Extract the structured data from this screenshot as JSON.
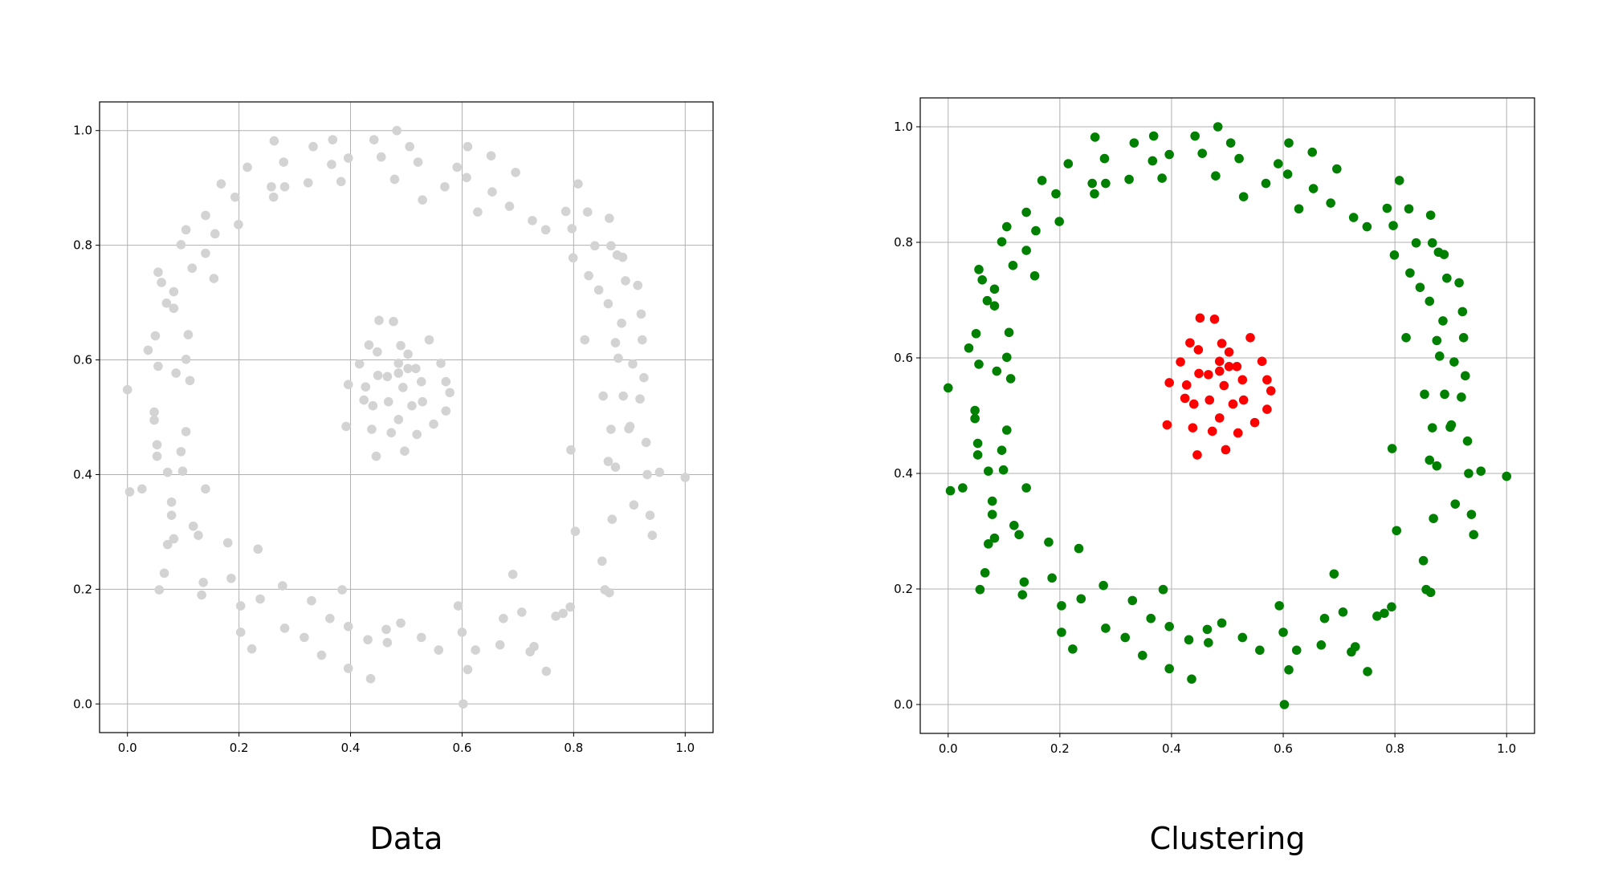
{
  "chart_data": [
    {
      "type": "scatter",
      "title": "Data",
      "xlim": [
        -0.05,
        1.05
      ],
      "ylim": [
        -0.05,
        1.05
      ],
      "xticks": [
        {
          "value": 0,
          "label": "0.0"
        },
        0.2,
        0.4,
        0.6,
        0.8,
        {
          "value": 1,
          "label": "1.0"
        }
      ],
      "yticks": [
        {
          "value": 0,
          "label": "0.0"
        },
        0.2,
        0.4,
        0.6,
        0.8,
        {
          "value": 1,
          "label": "1.0"
        }
      ],
      "grid": true,
      "series": [
        {
          "color": "#d3d3d3",
          "x": [
            0,
            0.004,
            0.026,
            0.037,
            0.048,
            0.048,
            0.053,
            0.053,
            0.05,
            0.057,
            0.055,
            0.055,
            0.061,
            0.066,
            0.072,
            0.07,
            0.072,
            0.079,
            0.079,
            0.083,
            0.083,
            0.083,
            0.087,
            0.096,
            0.099,
            0.096,
            0.105,
            0.105,
            0.105,
            0.109,
            0.112,
            0.116,
            0.118,
            0.127,
            0.133,
            0.136,
            0.14,
            0.14,
            0.14,
            0.155,
            0.157,
            0.168,
            0.18,
            0.186,
            0.193,
            0.199,
            0.203,
            0.203,
            0.215,
            0.223,
            0.234,
            0.238,
            0.258,
            0.262,
            0.263,
            0.28,
            0.278,
            0.282,
            0.282,
            0.317,
            0.324,
            0.33,
            0.333,
            0.348,
            0.363,
            0.366,
            0.368,
            0.383,
            0.385,
            0.396,
            0.396,
            0.396,
            0.431,
            0.436,
            0.442,
            0.455,
            0.464,
            0.466,
            0.479,
            0.483,
            0.49,
            0.506,
            0.521,
            0.527,
            0.529,
            0.558,
            0.569,
            0.591,
            0.593,
            0.6,
            0.602,
            0.608,
            0.61,
            0.61,
            0.624,
            0.628,
            0.652,
            0.654,
            0.668,
            0.674,
            0.685,
            0.691,
            0.696,
            0.707,
            0.722,
            0.726,
            0.729,
            0.75,
            0.751,
            0.768,
            0.781,
            0.786,
            0.794,
            0.795,
            0.797,
            0.799,
            0.803,
            0.808,
            0.82,
            0.825,
            0.827,
            0.838,
            0.845,
            0.851,
            0.853,
            0.856,
            0.862,
            0.862,
            0.864,
            0.864,
            0.867,
            0.867,
            0.869,
            0.875,
            0.875,
            0.878,
            0.88,
            0.886,
            0.888,
            0.889,
            0.893,
            0.899,
            0.901,
            0.906,
            0.908,
            0.915,
            0.919,
            0.921,
            0.923,
            0.926,
            0.93,
            0.932,
            0.937,
            0.941,
            0.954,
            1.0
          ],
          "y": [
            0.548,
            0.37,
            0.375,
            0.617,
            0.495,
            0.509,
            0.432,
            0.452,
            0.642,
            0.199,
            0.589,
            0.753,
            0.735,
            0.228,
            0.278,
            0.699,
            0.404,
            0.352,
            0.329,
            0.288,
            0.719,
            0.69,
            0.577,
            0.44,
            0.406,
            0.801,
            0.827,
            0.601,
            0.475,
            0.644,
            0.564,
            0.76,
            0.31,
            0.294,
            0.19,
            0.212,
            0.375,
            0.786,
            0.852,
            0.742,
            0.82,
            0.907,
            0.281,
            0.219,
            0.884,
            0.836,
            0.171,
            0.125,
            0.936,
            0.096,
            0.27,
            0.183,
            0.902,
            0.884,
            0.982,
            0.945,
            0.206,
            0.902,
            0.132,
            0.116,
            0.909,
            0.18,
            0.972,
            0.085,
            0.149,
            0.941,
            0.984,
            0.911,
            0.199,
            0.952,
            0.135,
            0.062,
            0.112,
            0.044,
            0.984,
            0.954,
            0.13,
            0.107,
            0.915,
            1.0,
            0.141,
            0.972,
            0.945,
            0.116,
            0.879,
            0.094,
            0.902,
            0.936,
            0.171,
            0.125,
            0,
            0.918,
            0.06,
            0.972,
            0.094,
            0.858,
            0.956,
            0.893,
            0.103,
            0.149,
            0.868,
            0.226,
            0.927,
            0.16,
            0.091,
            0.843,
            0.1,
            0.827,
            0.057,
            0.153,
            0.158,
            0.859,
            0.169,
            0.443,
            0.829,
            0.778,
            0.301,
            0.907,
            0.635,
            0.858,
            0.747,
            0.799,
            0.722,
            0.249,
            0.537,
            0.199,
            0.698,
            0.423,
            0.847,
            0.194,
            0.799,
            0.479,
            0.322,
            0.63,
            0.413,
            0.783,
            0.603,
            0.664,
            0.779,
            0.537,
            0.738,
            0.48,
            0.484,
            0.593,
            0.347,
            0.73,
            0.532,
            0.68,
            0.635,
            0.569,
            0.456,
            0.4,
            0.329,
            0.294,
            0.404,
            0.395
          ]
        },
        {
          "color": "#d3d3d3",
          "x": [
            0.451,
            0.477,
            0.433,
            0.49,
            0.541,
            0.448,
            0.503,
            0.416,
            0.486,
            0.562,
            0.466,
            0.503,
            0.517,
            0.486,
            0.396,
            0.427,
            0.449,
            0.527,
            0.571,
            0.494,
            0.578,
            0.424,
            0.468,
            0.44,
            0.529,
            0.51,
            0.571,
            0.486,
            0.549,
            0.392,
            0.438,
            0.473,
            0.519,
            0.497,
            0.446
          ],
          "y": [
            0.669,
            0.667,
            0.626,
            0.625,
            0.635,
            0.614,
            0.61,
            0.593,
            0.594,
            0.594,
            0.571,
            0.585,
            0.585,
            0.577,
            0.557,
            0.553,
            0.573,
            0.562,
            0.562,
            0.552,
            0.543,
            0.53,
            0.527,
            0.52,
            0.527,
            0.52,
            0.511,
            0.496,
            0.488,
            0.484,
            0.479,
            0.473,
            0.47,
            0.441,
            0.432
          ]
        }
      ]
    },
    {
      "type": "scatter",
      "title": "Clustering",
      "xlim": [
        -0.05,
        1.05
      ],
      "ylim": [
        -0.05,
        1.05
      ],
      "xticks": [
        {
          "value": 0,
          "label": "0.0"
        },
        0.2,
        0.4,
        0.6,
        0.8,
        {
          "value": 1,
          "label": "1.0"
        }
      ],
      "yticks": [
        {
          "value": 0,
          "label": "0.0"
        },
        0.2,
        0.4,
        0.6,
        0.8,
        {
          "value": 1,
          "label": "1.0"
        }
      ],
      "grid": true,
      "series": [
        {
          "color": "#008000",
          "x": [
            0,
            0.004,
            0.026,
            0.037,
            0.048,
            0.048,
            0.053,
            0.053,
            0.05,
            0.057,
            0.055,
            0.055,
            0.061,
            0.066,
            0.072,
            0.07,
            0.072,
            0.079,
            0.079,
            0.083,
            0.083,
            0.083,
            0.087,
            0.096,
            0.099,
            0.096,
            0.105,
            0.105,
            0.105,
            0.109,
            0.112,
            0.116,
            0.118,
            0.127,
            0.133,
            0.136,
            0.14,
            0.14,
            0.14,
            0.155,
            0.157,
            0.168,
            0.18,
            0.186,
            0.193,
            0.199,
            0.203,
            0.203,
            0.215,
            0.223,
            0.234,
            0.238,
            0.258,
            0.262,
            0.263,
            0.28,
            0.278,
            0.282,
            0.282,
            0.317,
            0.324,
            0.33,
            0.333,
            0.348,
            0.363,
            0.366,
            0.368,
            0.383,
            0.385,
            0.396,
            0.396,
            0.396,
            0.431,
            0.436,
            0.442,
            0.455,
            0.464,
            0.466,
            0.479,
            0.483,
            0.49,
            0.506,
            0.521,
            0.527,
            0.529,
            0.558,
            0.569,
            0.591,
            0.593,
            0.6,
            0.602,
            0.608,
            0.61,
            0.61,
            0.624,
            0.628,
            0.652,
            0.654,
            0.668,
            0.674,
            0.685,
            0.691,
            0.696,
            0.707,
            0.722,
            0.726,
            0.729,
            0.75,
            0.751,
            0.768,
            0.781,
            0.786,
            0.794,
            0.795,
            0.797,
            0.799,
            0.803,
            0.808,
            0.82,
            0.825,
            0.827,
            0.838,
            0.845,
            0.851,
            0.853,
            0.856,
            0.862,
            0.862,
            0.864,
            0.864,
            0.867,
            0.867,
            0.869,
            0.875,
            0.875,
            0.878,
            0.88,
            0.886,
            0.888,
            0.889,
            0.893,
            0.899,
            0.901,
            0.906,
            0.908,
            0.915,
            0.919,
            0.921,
            0.923,
            0.926,
            0.93,
            0.932,
            0.937,
            0.941,
            0.954,
            1.0
          ],
          "y": [
            0.548,
            0.37,
            0.375,
            0.617,
            0.495,
            0.509,
            0.432,
            0.452,
            0.642,
            0.199,
            0.589,
            0.753,
            0.735,
            0.228,
            0.278,
            0.699,
            0.404,
            0.352,
            0.329,
            0.288,
            0.719,
            0.69,
            0.577,
            0.44,
            0.406,
            0.801,
            0.827,
            0.601,
            0.475,
            0.644,
            0.564,
            0.76,
            0.31,
            0.294,
            0.19,
            0.212,
            0.375,
            0.786,
            0.852,
            0.742,
            0.82,
            0.907,
            0.281,
            0.219,
            0.884,
            0.836,
            0.171,
            0.125,
            0.936,
            0.096,
            0.27,
            0.183,
            0.902,
            0.884,
            0.982,
            0.945,
            0.206,
            0.902,
            0.132,
            0.116,
            0.909,
            0.18,
            0.972,
            0.085,
            0.149,
            0.941,
            0.984,
            0.911,
            0.199,
            0.952,
            0.135,
            0.062,
            0.112,
            0.044,
            0.984,
            0.954,
            0.13,
            0.107,
            0.915,
            1.0,
            0.141,
            0.972,
            0.945,
            0.116,
            0.879,
            0.094,
            0.902,
            0.936,
            0.171,
            0.125,
            0,
            0.918,
            0.06,
            0.972,
            0.094,
            0.858,
            0.956,
            0.893,
            0.103,
            0.149,
            0.868,
            0.226,
            0.927,
            0.16,
            0.091,
            0.843,
            0.1,
            0.827,
            0.057,
            0.153,
            0.158,
            0.859,
            0.169,
            0.443,
            0.829,
            0.778,
            0.301,
            0.907,
            0.635,
            0.858,
            0.747,
            0.799,
            0.722,
            0.249,
            0.537,
            0.199,
            0.698,
            0.423,
            0.847,
            0.194,
            0.799,
            0.479,
            0.322,
            0.63,
            0.413,
            0.783,
            0.603,
            0.664,
            0.779,
            0.537,
            0.738,
            0.48,
            0.484,
            0.593,
            0.347,
            0.73,
            0.532,
            0.68,
            0.635,
            0.569,
            0.456,
            0.4,
            0.329,
            0.294,
            0.404,
            0.395
          ]
        },
        {
          "color": "#ff0000",
          "x": [
            0.451,
            0.477,
            0.433,
            0.49,
            0.541,
            0.448,
            0.503,
            0.416,
            0.486,
            0.562,
            0.466,
            0.503,
            0.517,
            0.486,
            0.396,
            0.427,
            0.449,
            0.527,
            0.571,
            0.494,
            0.578,
            0.424,
            0.468,
            0.44,
            0.529,
            0.51,
            0.571,
            0.486,
            0.549,
            0.392,
            0.438,
            0.473,
            0.519,
            0.497,
            0.446
          ],
          "y": [
            0.669,
            0.667,
            0.626,
            0.625,
            0.635,
            0.614,
            0.61,
            0.593,
            0.594,
            0.594,
            0.571,
            0.585,
            0.585,
            0.577,
            0.557,
            0.553,
            0.573,
            0.562,
            0.562,
            0.552,
            0.543,
            0.53,
            0.527,
            0.52,
            0.527,
            0.52,
            0.511,
            0.496,
            0.488,
            0.484,
            0.479,
            0.473,
            0.47,
            0.441,
            0.432
          ]
        }
      ]
    }
  ]
}
